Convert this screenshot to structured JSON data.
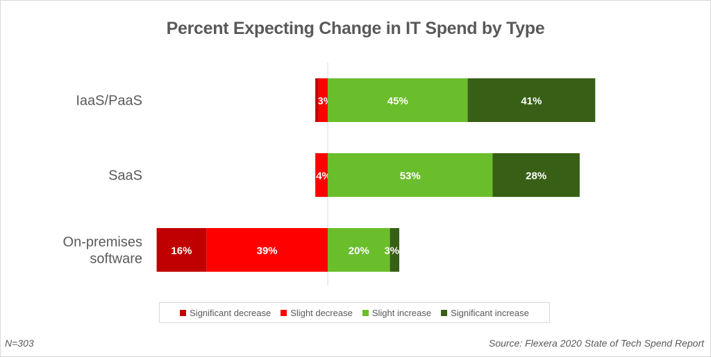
{
  "chart_data": {
    "type": "bar",
    "orientation": "horizontal",
    "stacked": "diverging",
    "title": "Percent Expecting Change in IT Spend by Type",
    "categories": [
      "IaaS/PaaS",
      "SaaS",
      "On-premises software"
    ],
    "category_lines": [
      [
        "IaaS/PaaS"
      ],
      [
        "SaaS"
      ],
      [
        "On-premises",
        "software"
      ]
    ],
    "series": [
      {
        "name": "Significant decrease",
        "color": "#c00000",
        "direction": "negative",
        "values": [
          1,
          0,
          16
        ],
        "labels": [
          "",
          "",
          "16%"
        ]
      },
      {
        "name": "Slight decrease",
        "color": "#ff0000",
        "direction": "negative",
        "values": [
          3,
          4,
          39
        ],
        "labels": [
          "3%",
          "4%",
          "39%"
        ]
      },
      {
        "name": "Slight increase",
        "color": "#6abd2b",
        "direction": "positive",
        "values": [
          45,
          53,
          20
        ],
        "labels": [
          "45%",
          "53%",
          "20%"
        ]
      },
      {
        "name": "Significant increase",
        "color": "#375f16",
        "direction": "positive",
        "values": [
          41,
          28,
          3
        ],
        "labels": [
          "41%",
          "28%",
          "3%"
        ]
      }
    ],
    "xlim": [
      -55,
      87
    ],
    "xlabel": "",
    "ylabel": "",
    "grid": false,
    "legend_position": "bottom"
  },
  "footer": {
    "sample_size": "N=303",
    "source": "Source: Flexera 2020 State of Tech Spend Report"
  }
}
